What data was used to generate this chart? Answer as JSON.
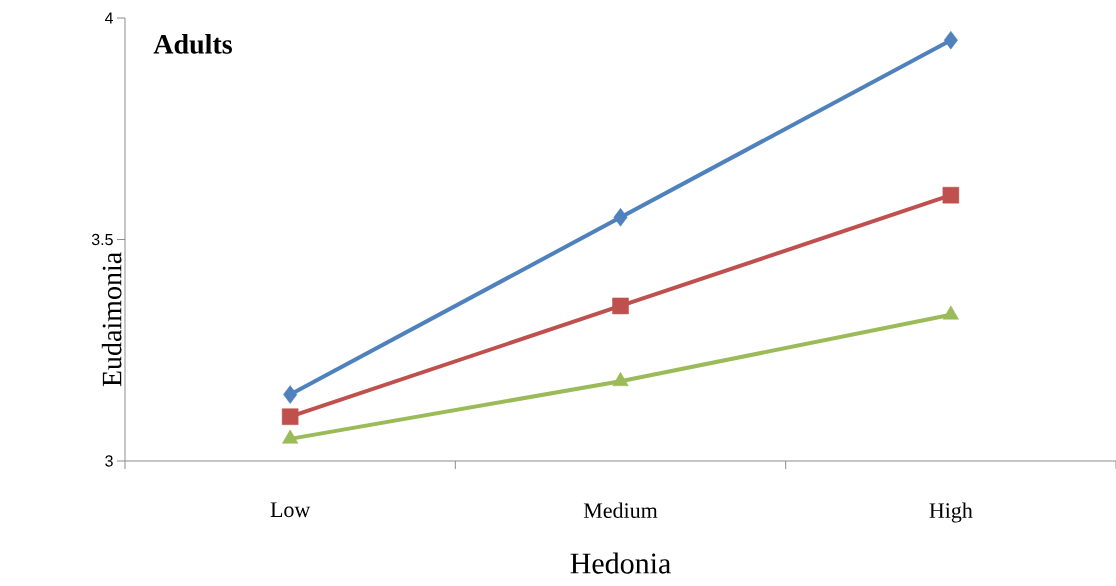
{
  "chart_data": {
    "type": "line",
    "title": "Adults",
    "xlabel": "Hedonia",
    "ylabel": "Eudaimonia",
    "categories": [
      "Low",
      "Medium",
      "High"
    ],
    "series": [
      {
        "color": "#4f81bd",
        "marker": "diamond",
        "values": [
          3.15,
          3.55,
          3.95
        ]
      },
      {
        "color": "#c0504d",
        "marker": "square",
        "values": [
          3.1,
          3.35,
          3.6
        ]
      },
      {
        "color": "#9bbb59",
        "marker": "triangle",
        "values": [
          3.05,
          3.18,
          3.33
        ]
      }
    ],
    "ylim": [
      3,
      4
    ],
    "yticks": [
      3,
      3.5,
      4
    ],
    "grid": false
  }
}
